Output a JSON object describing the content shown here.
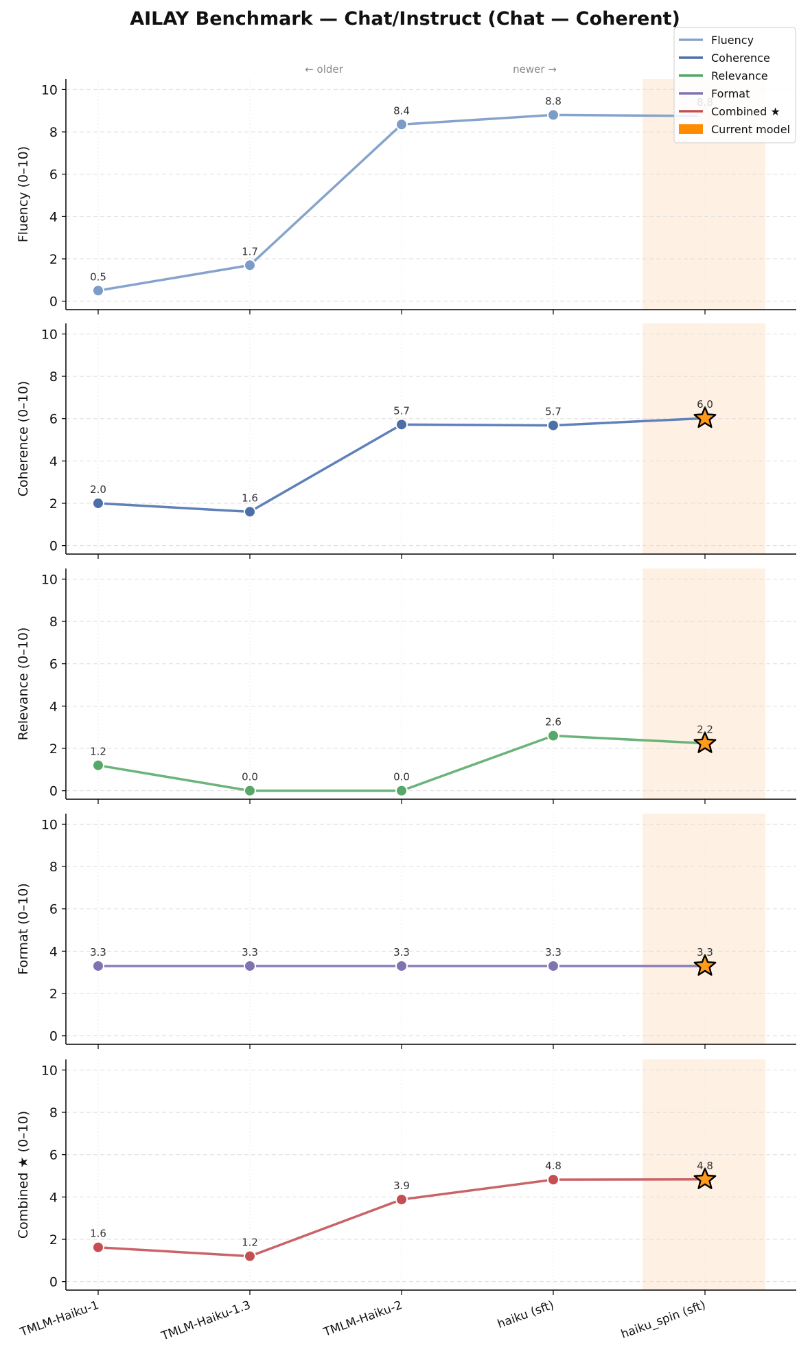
{
  "title": "AILAY Benchmark — Chat/Instruct  (Chat — Coherent)",
  "annotations": {
    "older": "← older",
    "newer": "newer →"
  },
  "legend": [
    {
      "label": "Fluency",
      "color": "#86a3cc",
      "kind": "line"
    },
    {
      "label": "Coherence",
      "color": "#4c6faa",
      "kind": "line"
    },
    {
      "label": "Relevance",
      "color": "#55a868",
      "kind": "line"
    },
    {
      "label": "Format",
      "color": "#8172b2",
      "kind": "line"
    },
    {
      "label": "Combined ★",
      "color": "#c44e52",
      "kind": "line"
    },
    {
      "label": "Current model",
      "color": "#ff8c00",
      "kind": "patch"
    }
  ],
  "colors": {
    "highlight_band": "#fef1e3",
    "star_fill": "#ff9a1a",
    "star_stroke": "#000000",
    "grid": "#dddddd"
  },
  "chart_data": {
    "type": "line",
    "categories": [
      "TMLM-Haiku-1",
      "TMLM-Haiku-1.3",
      "TMLM-Haiku-2",
      "haiku (sft)",
      "haiku_spin (sft)"
    ],
    "current_model_index": 4,
    "ylim": [
      -0.4,
      10.5
    ],
    "yticks": [
      0,
      2,
      4,
      6,
      8,
      10
    ],
    "grid": true,
    "legend_position": "top-right",
    "panels": [
      {
        "name": "Fluency",
        "ylabel": "Fluency (0–10)",
        "color": "#86a3cc",
        "marker_color": "#7b9bc8",
        "values": [
          0.5,
          1.7,
          8.35,
          8.8,
          8.75
        ],
        "labels": [
          "0.5",
          "1.7",
          "8.4",
          "8.8",
          "8.8"
        ]
      },
      {
        "name": "Coherence",
        "ylabel": "Coherence (0–10)",
        "color": "#5f80b8",
        "marker_color": "#4c6faa",
        "values": [
          2.0,
          1.6,
          5.72,
          5.68,
          6.02
        ],
        "labels": [
          "2.0",
          "1.6",
          "5.7",
          "5.7",
          "6.0"
        ]
      },
      {
        "name": "Relevance",
        "ylabel": "Relevance (0–10)",
        "color": "#6ab37a",
        "marker_color": "#55a868",
        "values": [
          1.2,
          0.0,
          0.0,
          2.6,
          2.24
        ],
        "labels": [
          "1.2",
          "0.0",
          "0.0",
          "2.6",
          "2.2"
        ]
      },
      {
        "name": "Format",
        "ylabel": "Format (0–10)",
        "color": "#8a7db8",
        "marker_color": "#8172b2",
        "values": [
          3.3,
          3.3,
          3.3,
          3.3,
          3.3
        ],
        "labels": [
          "3.3",
          "3.3",
          "3.3",
          "3.3",
          "3.3"
        ]
      },
      {
        "name": "Combined ★",
        "ylabel": "Combined ★ (0–10)",
        "color": "#c96367",
        "marker_color": "#c44e52",
        "values": [
          1.62,
          1.2,
          3.88,
          4.82,
          4.83
        ],
        "labels": [
          "1.6",
          "1.2",
          "3.9",
          "4.8",
          "4.8"
        ]
      }
    ]
  }
}
